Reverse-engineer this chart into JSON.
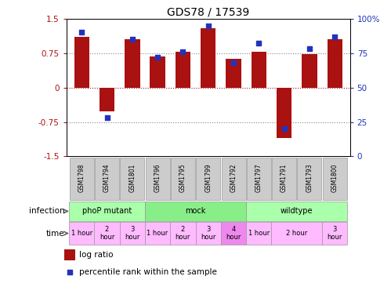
{
  "title": "GDS78 / 17539",
  "samples": [
    "GSM1798",
    "GSM1794",
    "GSM1801",
    "GSM1796",
    "GSM1795",
    "GSM1799",
    "GSM1792",
    "GSM1797",
    "GSM1791",
    "GSM1793",
    "GSM1800"
  ],
  "log_ratio": [
    1.1,
    -0.52,
    1.05,
    0.68,
    0.78,
    1.3,
    0.62,
    0.78,
    -1.1,
    0.72,
    1.05
  ],
  "percentile": [
    90,
    28,
    85,
    72,
    76,
    95,
    68,
    82,
    20,
    78,
    87
  ],
  "bar_color": "#aa1111",
  "dot_color": "#2233bb",
  "ylim_left": [
    -1.5,
    1.5
  ],
  "ylim_right": [
    0,
    100
  ],
  "yticks_left": [
    -1.5,
    -0.75,
    0,
    0.75,
    1.5
  ],
  "yticks_right": [
    0,
    25,
    50,
    75,
    100
  ],
  "ytick_labels_right": [
    "0",
    "25",
    "50",
    "75",
    "100%"
  ],
  "hlines": [
    -0.75,
    0,
    0.75
  ],
  "infection_groups": [
    {
      "label": "phoP mutant",
      "start": 0,
      "end": 3,
      "color": "#aaffaa"
    },
    {
      "label": "mock",
      "start": 3,
      "end": 7,
      "color": "#88ee88"
    },
    {
      "label": "wildtype",
      "start": 7,
      "end": 11,
      "color": "#aaffaa"
    }
  ],
  "time_groups": [
    {
      "label": "1 hour",
      "start": 0,
      "end": 1,
      "color": "#ffbbff"
    },
    {
      "label": "2\nhour",
      "start": 1,
      "end": 2,
      "color": "#ffbbff"
    },
    {
      "label": "3\nhour",
      "start": 2,
      "end": 3,
      "color": "#ffbbff"
    },
    {
      "label": "1 hour",
      "start": 3,
      "end": 4,
      "color": "#ffbbff"
    },
    {
      "label": "2\nhour",
      "start": 4,
      "end": 5,
      "color": "#ffbbff"
    },
    {
      "label": "3\nhour",
      "start": 5,
      "end": 6,
      "color": "#ffbbff"
    },
    {
      "label": "4\nhour",
      "start": 6,
      "end": 7,
      "color": "#ee88ee"
    },
    {
      "label": "1 hour",
      "start": 7,
      "end": 8,
      "color": "#ffbbff"
    },
    {
      "label": "2 hour",
      "start": 8,
      "end": 10,
      "color": "#ffbbff"
    },
    {
      "label": "3\nhour",
      "start": 10,
      "end": 11,
      "color": "#ffbbff"
    }
  ],
  "legend_items": [
    {
      "color": "#aa1111",
      "label": "log ratio"
    },
    {
      "color": "#2233bb",
      "label": "percentile rank within the sample"
    }
  ],
  "sample_bg_color": "#cccccc",
  "sample_border_color": "#999999",
  "infection_row_label": "infection",
  "time_row_label": "time",
  "left_label_color": "#666666"
}
